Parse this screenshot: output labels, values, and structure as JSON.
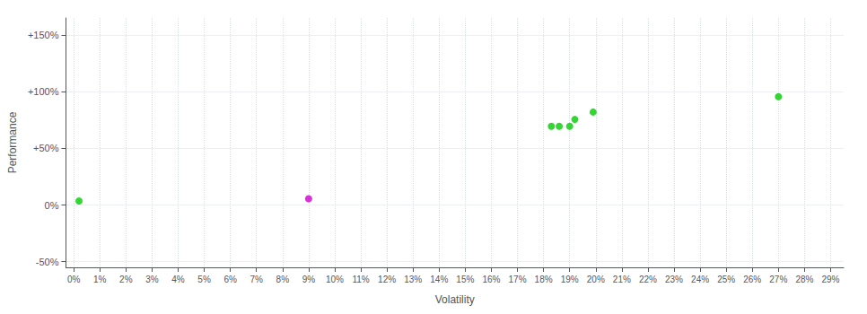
{
  "chart_data": {
    "type": "scatter",
    "xlabel": "Volatility",
    "ylabel": "Performance",
    "xlim": [
      -0.003,
      0.295
    ],
    "ylim": [
      -0.55,
      1.65
    ],
    "xticks": [
      {
        "value": 0.0,
        "label": "0%"
      },
      {
        "value": 0.01,
        "label": "1%"
      },
      {
        "value": 0.02,
        "label": "2%"
      },
      {
        "value": 0.03,
        "label": "3%"
      },
      {
        "value": 0.04,
        "label": "4%"
      },
      {
        "value": 0.05,
        "label": "5%"
      },
      {
        "value": 0.06,
        "label": "6%"
      },
      {
        "value": 0.07,
        "label": "7%"
      },
      {
        "value": 0.08,
        "label": "8%"
      },
      {
        "value": 0.09,
        "label": "9%"
      },
      {
        "value": 0.1,
        "label": "10%"
      },
      {
        "value": 0.11,
        "label": "11%"
      },
      {
        "value": 0.12,
        "label": "12%"
      },
      {
        "value": 0.13,
        "label": "13%"
      },
      {
        "value": 0.14,
        "label": "14%"
      },
      {
        "value": 0.15,
        "label": "15%"
      },
      {
        "value": 0.16,
        "label": "16%"
      },
      {
        "value": 0.17,
        "label": "17%"
      },
      {
        "value": 0.18,
        "label": "18%"
      },
      {
        "value": 0.19,
        "label": "19%"
      },
      {
        "value": 0.2,
        "label": "20%"
      },
      {
        "value": 0.21,
        "label": "21%"
      },
      {
        "value": 0.22,
        "label": "22%"
      },
      {
        "value": 0.23,
        "label": "23%"
      },
      {
        "value": 0.24,
        "label": "24%"
      },
      {
        "value": 0.25,
        "label": "25%"
      },
      {
        "value": 0.26,
        "label": "26%"
      },
      {
        "value": 0.27,
        "label": "27%"
      },
      {
        "value": 0.28,
        "label": "28%"
      },
      {
        "value": 0.29,
        "label": "29%"
      }
    ],
    "yticks": [
      {
        "value": -0.5,
        "label": "-50%"
      },
      {
        "value": 0.0,
        "label": "0%"
      },
      {
        "value": 0.5,
        "label": "+50%"
      },
      {
        "value": 1.0,
        "label": "+100%"
      },
      {
        "value": 1.5,
        "label": "+150%"
      }
    ],
    "grid": true,
    "series": [
      {
        "color": "#00cc00",
        "x": [
          0.002,
          0.183,
          0.186,
          0.19,
          0.192,
          0.199,
          0.27
        ],
        "values": [
          0.035,
          0.695,
          0.695,
          0.695,
          0.755,
          0.82,
          0.955
        ]
      },
      {
        "color": "#cc00cc",
        "x": [
          0.09
        ],
        "values": [
          0.055
        ]
      }
    ]
  }
}
